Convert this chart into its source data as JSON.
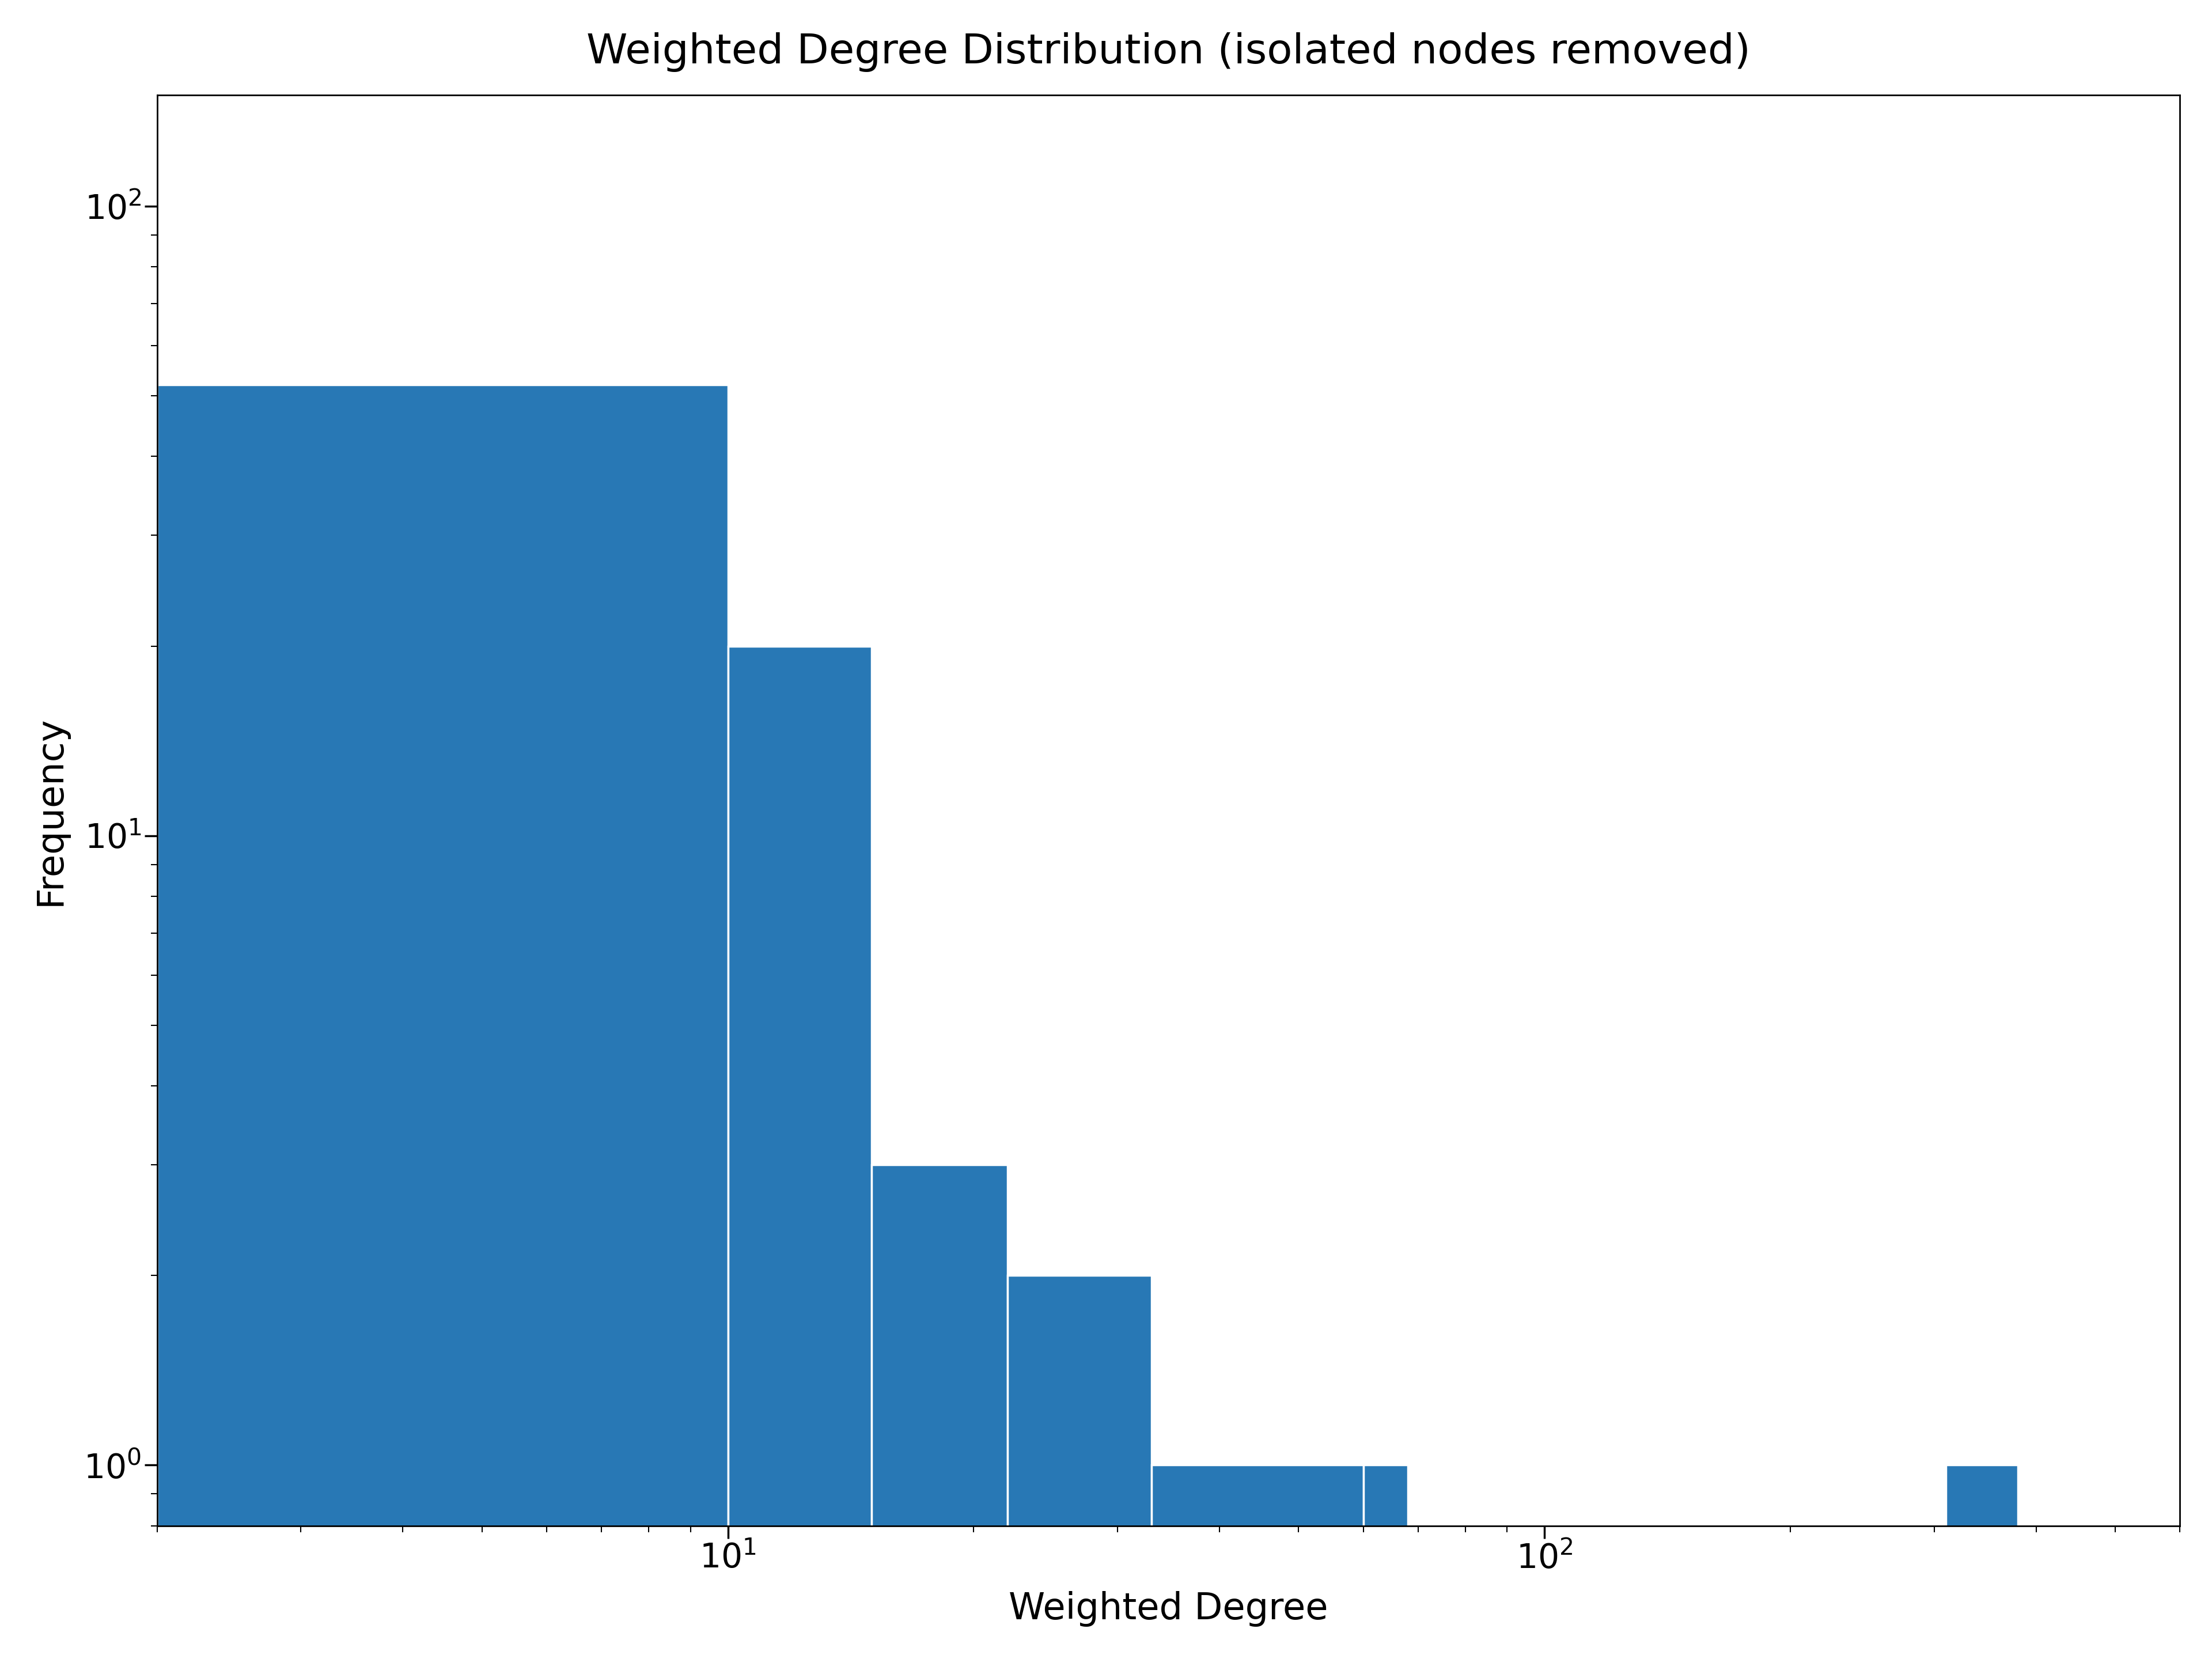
{
  "title": "Weighted Degree Distribution (isolated nodes removed)",
  "xlabel": "Weighted Degree",
  "ylabel": "Frequency",
  "bar_color": "#2878b5",
  "background_color": "#ffffff",
  "title_fontsize": 52,
  "label_fontsize": 46,
  "tick_fontsize": 42,
  "bin_edges": [
    2.0,
    10.0,
    15.0,
    22.0,
    33.0,
    60.0,
    68.0,
    310.0,
    380.0
  ],
  "frequencies": [
    52,
    20,
    3,
    2,
    1,
    1,
    0,
    1
  ],
  "xlim": [
    2.0,
    600.0
  ],
  "ylim": [
    0.8,
    150
  ]
}
